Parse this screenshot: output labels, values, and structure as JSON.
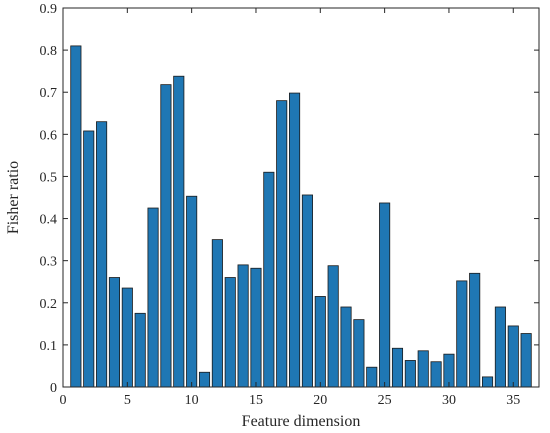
{
  "chart_data": {
    "type": "bar",
    "title": "",
    "xlabel": "Feature dimension",
    "ylabel": "Fisher ratio",
    "xlim": [
      0,
      37
    ],
    "ylim": [
      0,
      0.9
    ],
    "x": [
      1,
      2,
      3,
      4,
      5,
      6,
      7,
      8,
      9,
      10,
      11,
      12,
      13,
      14,
      15,
      16,
      17,
      18,
      19,
      20,
      21,
      22,
      23,
      24,
      25,
      26,
      27,
      28,
      29,
      30,
      31,
      32,
      33,
      34,
      35,
      36
    ],
    "values": [
      0.81,
      0.608,
      0.63,
      0.26,
      0.235,
      0.175,
      0.425,
      0.718,
      0.738,
      0.453,
      0.035,
      0.35,
      0.26,
      0.29,
      0.282,
      0.51,
      0.68,
      0.698,
      0.456,
      0.215,
      0.288,
      0.19,
      0.16,
      0.047,
      0.437,
      0.092,
      0.063,
      0.086,
      0.06,
      0.078,
      0.252,
      0.27,
      0.024,
      0.19,
      0.145,
      0.127
    ],
    "xticks": [
      "0",
      "5",
      "10",
      "15",
      "20",
      "25",
      "30",
      "35"
    ],
    "yticks": [
      "0",
      "0.1",
      "0.2",
      "0.3",
      "0.4",
      "0.5",
      "0.6",
      "0.7",
      "0.8",
      "0.9"
    ],
    "bar_color": "#1f77b4",
    "grid": false,
    "legend": "none"
  }
}
